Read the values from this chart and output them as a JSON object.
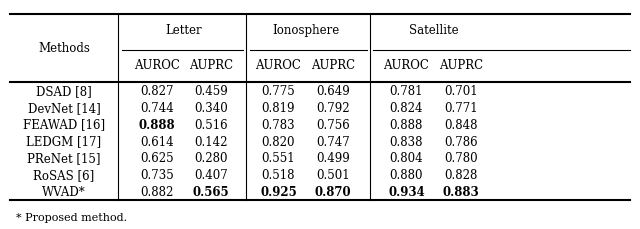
{
  "methods": [
    "DSAD [8]",
    "DevNet [14]",
    "FEAWAD [16]",
    "LEDGM [17]",
    "PReNet [15]",
    "RoSAS [6]",
    "WVAD*"
  ],
  "letter_auroc": [
    "0.827",
    "0.744",
    "0.888",
    "0.614",
    "0.625",
    "0.735",
    "0.882"
  ],
  "letter_auprc": [
    "0.459",
    "0.340",
    "0.516",
    "0.142",
    "0.280",
    "0.407",
    "0.565"
  ],
  "ionosphere_auroc": [
    "0.775",
    "0.819",
    "0.783",
    "0.820",
    "0.551",
    "0.518",
    "0.925"
  ],
  "ionosphere_auprc": [
    "0.649",
    "0.792",
    "0.756",
    "0.747",
    "0.499",
    "0.501",
    "0.870"
  ],
  "satellite_auroc": [
    "0.781",
    "0.824",
    "0.888",
    "0.838",
    "0.804",
    "0.880",
    "0.934"
  ],
  "satellite_auprc": [
    "0.701",
    "0.771",
    "0.848",
    "0.786",
    "0.780",
    "0.828",
    "0.883"
  ],
  "bold_cells": {
    "letter_auroc": [
      2
    ],
    "letter_auprc": [
      6
    ],
    "ionosphere_auroc": [
      6
    ],
    "ionosphere_auprc": [
      6
    ],
    "satellite_auroc": [
      6
    ],
    "satellite_auprc": [
      6
    ]
  },
  "footnote": "* Proposed method.",
  "bg_color": "#ffffff",
  "col_keys": [
    "letter_auroc",
    "letter_auprc",
    "ionosphere_auroc",
    "ionosphere_auprc",
    "satellite_auroc",
    "satellite_auprc"
  ],
  "group_labels": [
    "Letter",
    "Ionosphere",
    "Satellite"
  ],
  "col_headers": [
    "AUROC",
    "AUPRC",
    "AUROC",
    "AUPRC",
    "AUROC",
    "AUPRC"
  ]
}
